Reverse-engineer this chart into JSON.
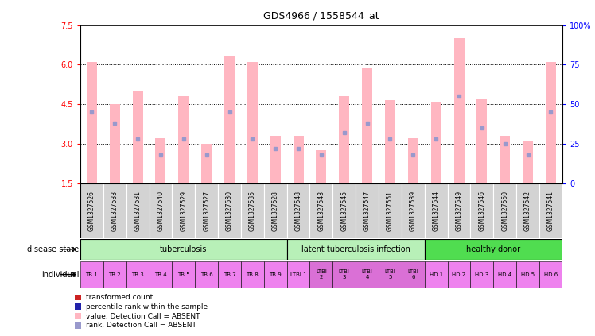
{
  "title": "GDS4966 / 1558544_at",
  "samples": [
    "GSM1327526",
    "GSM1327533",
    "GSM1327531",
    "GSM1327540",
    "GSM1327529",
    "GSM1327527",
    "GSM1327530",
    "GSM1327535",
    "GSM1327528",
    "GSM1327548",
    "GSM1327543",
    "GSM1327545",
    "GSM1327547",
    "GSM1327551",
    "GSM1327539",
    "GSM1327544",
    "GSM1327549",
    "GSM1327546",
    "GSM1327550",
    "GSM1327542",
    "GSM1327541"
  ],
  "transformed_count": [
    6.1,
    4.5,
    5.0,
    3.2,
    4.8,
    3.0,
    6.35,
    6.1,
    3.3,
    3.3,
    2.75,
    4.8,
    5.9,
    4.65,
    3.2,
    4.55,
    7.0,
    4.7,
    3.3,
    3.1,
    6.1
  ],
  "rank_pct": [
    0.45,
    0.38,
    0.28,
    0.18,
    0.28,
    0.18,
    0.45,
    0.28,
    0.22,
    0.22,
    0.18,
    0.32,
    0.38,
    0.28,
    0.18,
    0.28,
    0.55,
    0.35,
    0.25,
    0.18,
    0.45
  ],
  "ylim_left": [
    1.5,
    7.5
  ],
  "yticks_left": [
    1.5,
    3.0,
    4.5,
    6.0,
    7.5
  ],
  "yticks_right_vals": [
    0,
    25,
    50,
    75,
    100
  ],
  "yticks_right_labels": [
    "0",
    "25",
    "50",
    "75",
    "100%"
  ],
  "bar_color_absent": "#FFB6C1",
  "rank_color_absent": "#9999CC",
  "bar_color_present": "#CC2222",
  "rank_color_present": "#2222AA",
  "sample_bg_color": "#D3D3D3",
  "disease_groups": [
    {
      "label": "tuberculosis",
      "start": 0,
      "end": 9,
      "color": "#B8F0B8"
    },
    {
      "label": "latent tuberculosis infection",
      "start": 9,
      "end": 15,
      "color": "#B8F0B8"
    },
    {
      "label": "healthy donor",
      "start": 15,
      "end": 21,
      "color": "#50DD50"
    }
  ],
  "individual_labels": [
    "TB 1",
    "TB 2",
    "TB 3",
    "TB 4",
    "TB 5",
    "TB 6",
    "TB 7",
    "TB 8",
    "TB 9",
    "LTBI 1",
    "LTBI\n2",
    "LTBI\n3",
    "LTBI\n4",
    "LTBI\n5",
    "LTBI\n6",
    "HD 1",
    "HD 2",
    "HD 3",
    "HD 4",
    "HD 5",
    "HD 6"
  ],
  "individual_colors": [
    "#EE82EE",
    "#EE82EE",
    "#EE82EE",
    "#EE82EE",
    "#EE82EE",
    "#EE82EE",
    "#EE82EE",
    "#EE82EE",
    "#EE82EE",
    "#EE82EE",
    "#DA70D6",
    "#DA70D6",
    "#DA70D6",
    "#DA70D6",
    "#DA70D6",
    "#EE82EE",
    "#EE82EE",
    "#EE82EE",
    "#EE82EE",
    "#EE82EE",
    "#EE82EE"
  ],
  "legend_items": [
    {
      "color": "#CC2222",
      "label": "transformed count"
    },
    {
      "color": "#2222AA",
      "label": "percentile rank within the sample"
    },
    {
      "color": "#FFB6C1",
      "label": "value, Detection Call = ABSENT"
    },
    {
      "color": "#9999CC",
      "label": "rank, Detection Call = ABSENT"
    }
  ]
}
